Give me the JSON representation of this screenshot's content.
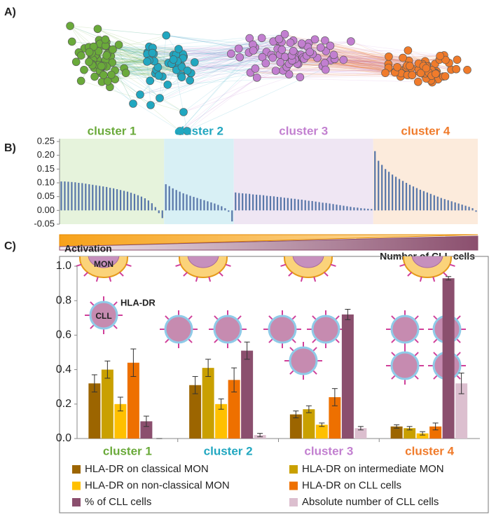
{
  "panel_labels": [
    "A)",
    "B)",
    "C)"
  ],
  "banner": {
    "left": "Activation",
    "right": "Number of CLL cells"
  },
  "cartoon": {
    "monocyte": "MON",
    "marker": "HLA-DR",
    "cell": "CLL"
  },
  "chart_data": [
    {
      "type": "sorted-bar",
      "bar_color": "#5a78aa",
      "ylim": [
        -0.05,
        0.25
      ],
      "yticks": [
        0.25,
        {
          "value": 0.2,
          "label": "0.20"
        },
        0.15,
        {
          "value": 0.1,
          "label": "0.10"
        },
        0.05,
        {
          "value": 0,
          "label": "0.00"
        },
        -0.05
      ],
      "series": [
        {
          "name": "cluster 1",
          "color": "#6aaa3a",
          "band": "#e6f3dc",
          "values": [
            0.105,
            0.105,
            0.104,
            0.103,
            0.102,
            0.1,
            0.099,
            0.097,
            0.095,
            0.093,
            0.091,
            0.089,
            0.087,
            0.085,
            0.082,
            0.08,
            0.077,
            0.074,
            0.071,
            0.068,
            0.064,
            0.06,
            0.055,
            0.05,
            0.044,
            0.036,
            0.026,
            0.012,
            -0.01,
            -0.028
          ]
        },
        {
          "name": "cluster 2",
          "color": "#21a7c0",
          "band": "#d8f0f5",
          "values": [
            0.095,
            0.088,
            0.08,
            0.074,
            0.068,
            0.062,
            0.058,
            0.053,
            0.049,
            0.045,
            0.041,
            0.037,
            0.033,
            0.029,
            0.025,
            0.02,
            0.015,
            0.008,
            -0.005,
            -0.04
          ]
        },
        {
          "name": "cluster 3",
          "color": "#c27fd0",
          "band": "#efe6f3",
          "values": [
            0.065,
            0.063,
            0.062,
            0.061,
            0.06,
            0.058,
            0.057,
            0.056,
            0.055,
            0.053,
            0.052,
            0.051,
            0.049,
            0.048,
            0.046,
            0.045,
            0.043,
            0.042,
            0.04,
            0.039,
            0.037,
            0.035,
            0.034,
            0.032,
            0.03,
            0.028,
            0.027,
            0.025,
            0.023,
            0.021,
            0.019,
            0.017,
            0.015,
            0.013,
            0.011,
            0.01,
            0.008,
            0.007,
            0.006,
            0.005
          ]
        },
        {
          "name": "cluster 4",
          "color": "#f07b2b",
          "band": "#fcebdc",
          "values": [
            0.215,
            0.18,
            0.165,
            0.15,
            0.14,
            0.13,
            0.122,
            0.114,
            0.107,
            0.1,
            0.093,
            0.087,
            0.081,
            0.075,
            0.07,
            0.065,
            0.06,
            0.055,
            0.05,
            0.045,
            0.041,
            0.037,
            0.033,
            0.029,
            0.025,
            0.021,
            0.017,
            0.013,
            0.008,
            -0.005
          ]
        }
      ]
    },
    {
      "type": "bar",
      "categories": [
        "cluster 1",
        "cluster 2",
        "cluster 3",
        "cluster 4"
      ],
      "category_colors": [
        "#6aaa3a",
        "#21a7c0",
        "#c27fd0",
        "#f07b2b"
      ],
      "ylim": [
        0,
        1
      ],
      "yticks": [
        {
          "value": 0,
          "label": "0.0"
        },
        0.2,
        0.4,
        0.6,
        0.8,
        {
          "value": 1,
          "label": "1.0"
        }
      ],
      "series": [
        {
          "name": "HLA-DR on classical MON",
          "color": "#9c6500",
          "values": [
            0.32,
            0.31,
            0.14,
            0.07
          ],
          "errors": [
            0.05,
            0.05,
            0.02,
            0.01
          ]
        },
        {
          "name": "HLA-DR on intermediate MON",
          "color": "#c9a000",
          "values": [
            0.4,
            0.41,
            0.17,
            0.06
          ],
          "errors": [
            0.05,
            0.05,
            0.02,
            0.01
          ]
        },
        {
          "name": "HLA-DR on non-classical MON",
          "color": "#ffc000",
          "values": [
            0.2,
            0.2,
            0.08,
            0.03
          ],
          "errors": [
            0.04,
            0.03,
            0.01,
            0.01
          ]
        },
        {
          "name": "HLA-DR on CLL cells",
          "color": "#ee7000",
          "values": [
            0.44,
            0.34,
            0.24,
            0.07
          ],
          "errors": [
            0.08,
            0.07,
            0.05,
            0.02
          ]
        },
        {
          "name": "% of CLL cells",
          "color": "#8b4f6e",
          "values": [
            0.1,
            0.51,
            0.72,
            0.93
          ],
          "errors": [
            0.03,
            0.05,
            0.03,
            0.01
          ]
        },
        {
          "name": "Absolute number of CLL cells",
          "color": "#dcbfcf",
          "values": [
            0.0,
            0.02,
            0.06,
            0.32
          ],
          "errors": [
            0.0,
            0.01,
            0.01,
            0.06
          ]
        }
      ]
    }
  ]
}
